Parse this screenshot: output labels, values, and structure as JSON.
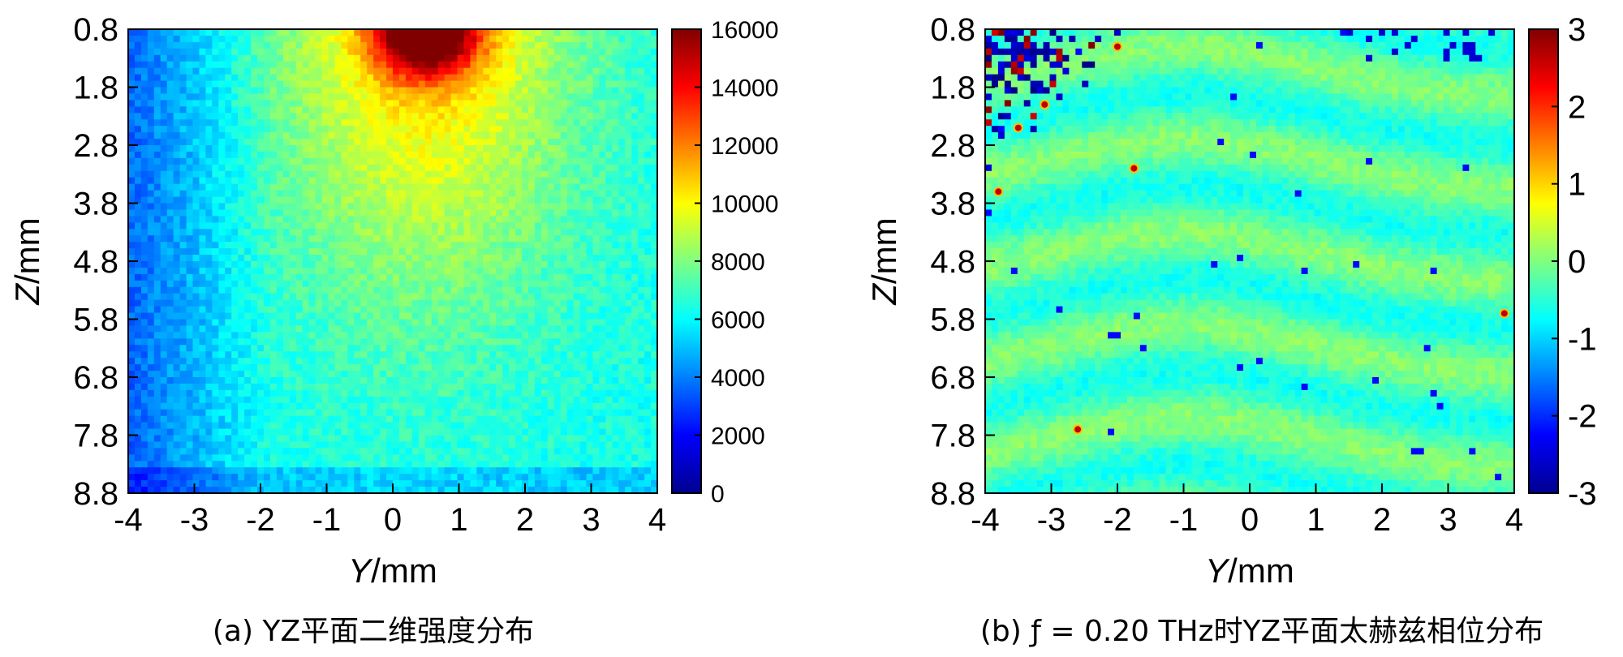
{
  "chart_data": [
    {
      "type": "heatmap",
      "panel": "a",
      "caption": "(a) YZ平面二维强度分布",
      "xlabel": "Y/mm",
      "ylabel": "Z/mm",
      "x_ticks": [
        "-4",
        "-3",
        "-2",
        "-1",
        "0",
        "1",
        "2",
        "3",
        "4"
      ],
      "y_ticks": [
        "0.8",
        "1.8",
        "2.8",
        "3.8",
        "4.8",
        "5.8",
        "6.8",
        "7.8",
        "8.8"
      ],
      "xlim": [
        -4,
        4
      ],
      "ylim": [
        0.8,
        8.8
      ],
      "colorbar": {
        "min": 0,
        "max": 16000,
        "ticks": [
          "16000",
          "14000",
          "12000",
          "10000",
          "8000",
          "6000",
          "4000",
          "2000",
          "0"
        ],
        "colormap": "jet"
      },
      "field_description_values": {
        "hotspot_center_y": 0.5,
        "hotspot_center_z": 0.8,
        "hotspot_peak": 16000,
        "background_level": 5500,
        "left_edge_level": 3500
      }
    },
    {
      "type": "heatmap",
      "panel": "b",
      "caption": "(b) ƒ = 0.20 THz时YZ平面太赫兹相位分布",
      "xlabel": "Y/mm",
      "ylabel": "Z/mm",
      "x_ticks": [
        "-4",
        "-3",
        "-2",
        "-1",
        "0",
        "1",
        "2",
        "3",
        "4"
      ],
      "y_ticks": [
        "0.8",
        "1.8",
        "2.8",
        "3.8",
        "4.8",
        "5.8",
        "6.8",
        "7.8",
        "8.8"
      ],
      "xlim": [
        -4,
        4
      ],
      "ylim": [
        0.8,
        8.8
      ],
      "colorbar": {
        "min": -3,
        "max": 3,
        "ticks": [
          "3",
          "2",
          "1",
          "0",
          "-1",
          "-2",
          "-3"
        ],
        "colormap": "jet"
      },
      "field_description_values": {
        "background_phase": -0.3,
        "band_count": 5,
        "noisy_region_y": [
          -4,
          -1.8
        ],
        "noisy_region_z": [
          0.8,
          3.2
        ]
      }
    }
  ],
  "colors": {
    "jet_dark_blue": "#00008f",
    "jet_blue": "#0000ff",
    "jet_cyan": "#00ffff",
    "jet_yellow": "#ffff00",
    "jet_red": "#ff0000",
    "jet_dark_red": "#800000"
  }
}
